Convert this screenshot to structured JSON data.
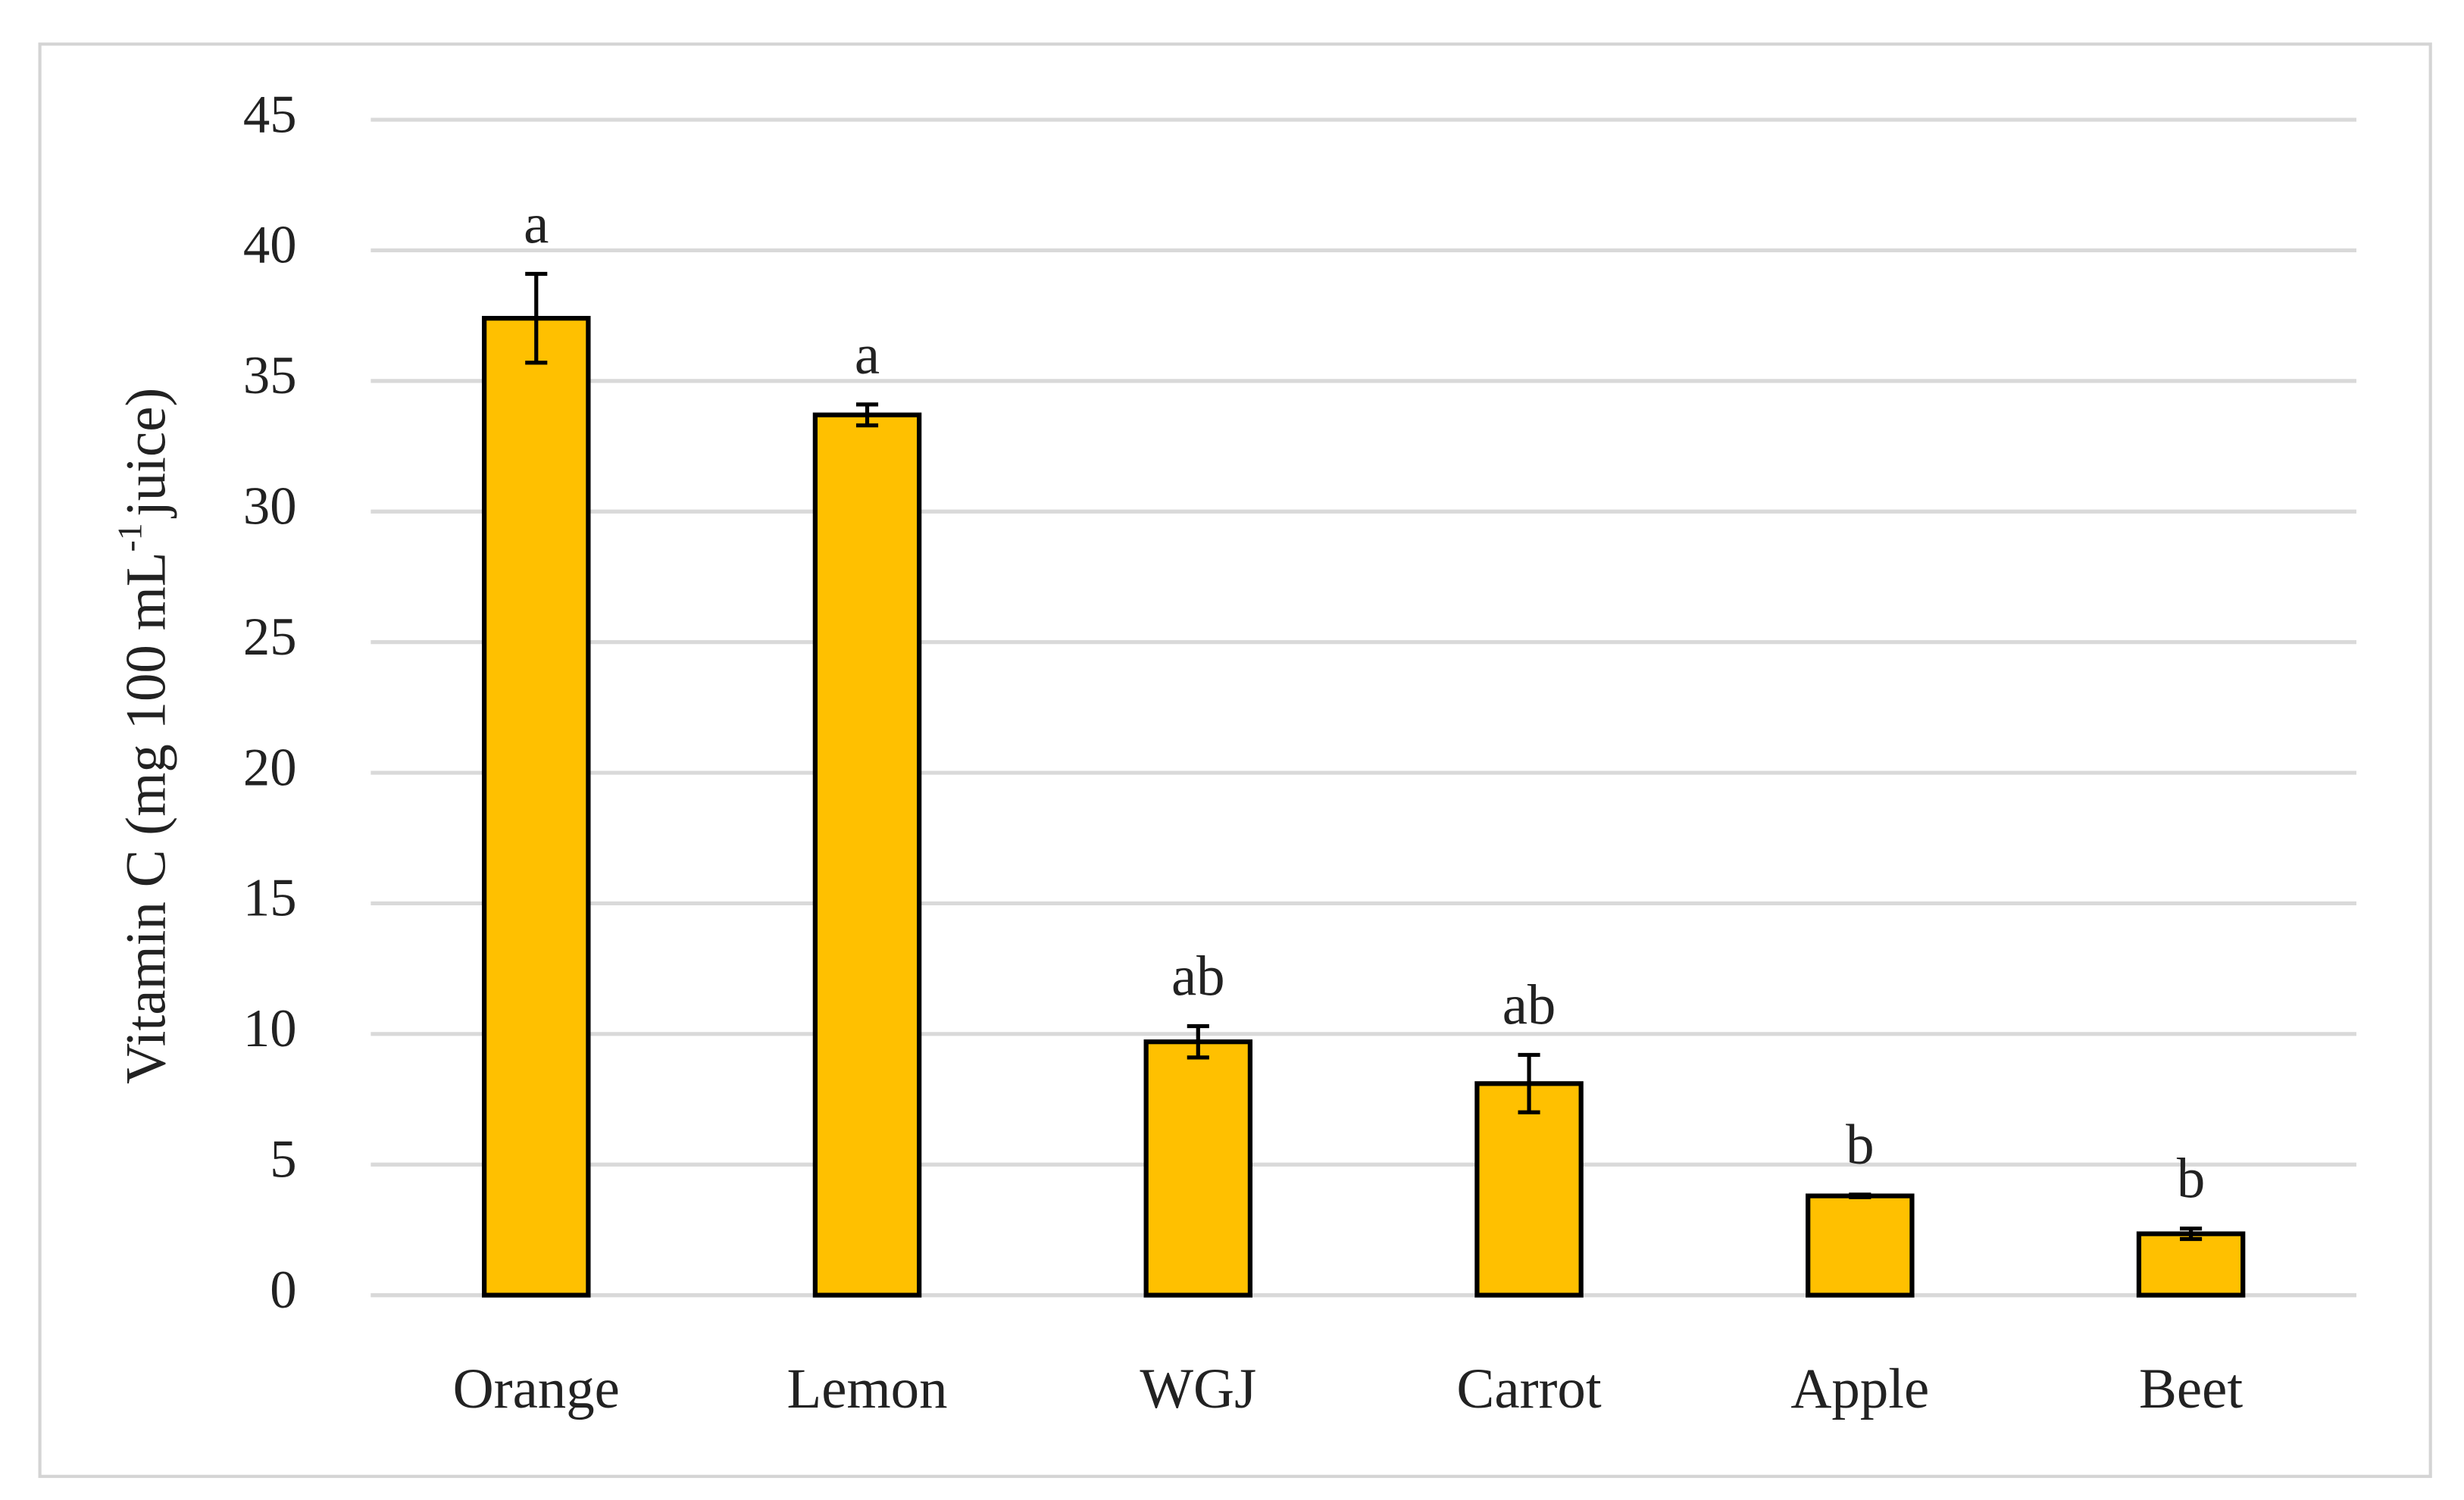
{
  "chart_data": {
    "type": "bar",
    "y_label": [
      "Vitamin C (mg 100 mL",
      "-1",
      "juice)"
    ],
    "categories": [
      "Orange",
      "Lemon",
      "WGJ",
      "Carrot",
      "Apple",
      "Beet"
    ],
    "values": [
      37.4,
      33.7,
      9.7,
      8.1,
      3.8,
      2.35
    ],
    "errors": [
      1.7,
      0.4,
      0.6,
      1.1,
      0.05,
      0.2
    ],
    "annotations": [
      "a",
      "a",
      "ab",
      "ab",
      "b",
      "b"
    ],
    "color": "#ffc000",
    "ylim": [
      0,
      45
    ],
    "yticks": [
      0,
      5,
      10,
      15,
      20,
      25,
      30,
      35,
      40,
      45
    ],
    "grid": true
  }
}
